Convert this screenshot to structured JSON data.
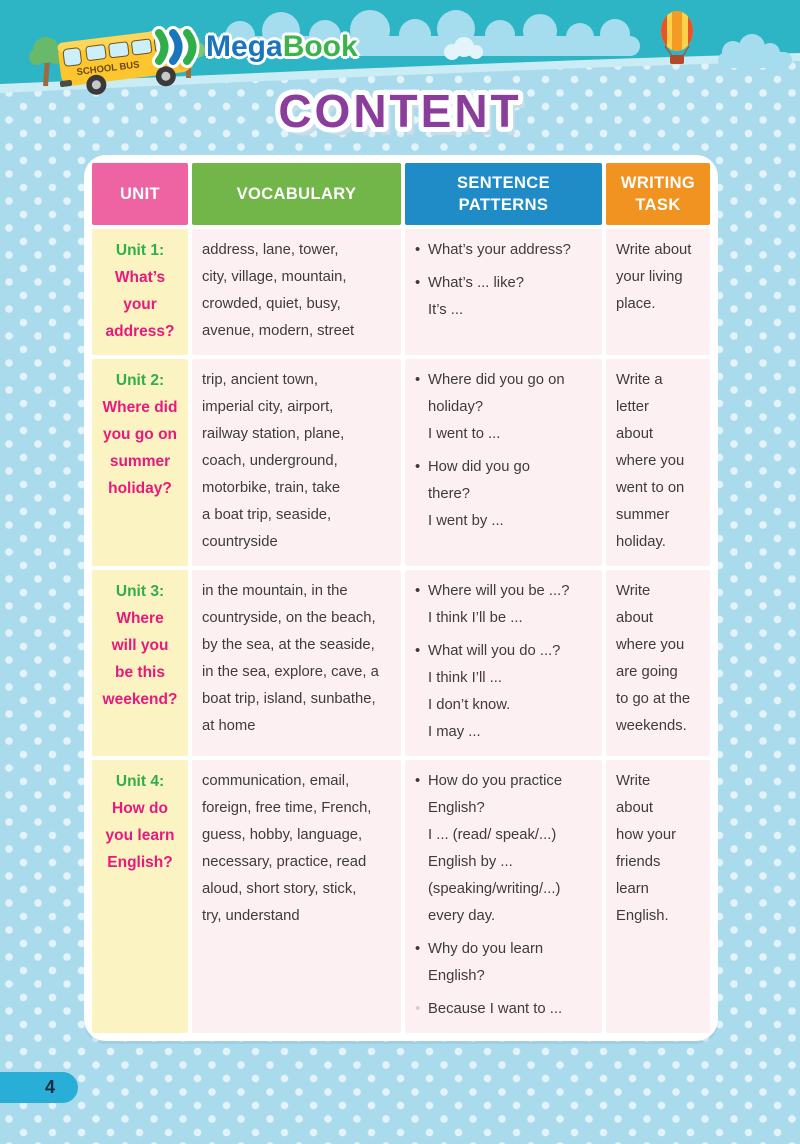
{
  "title": "CONTENT",
  "page_number": "4",
  "logo": {
    "mega": "Mega",
    "book": "Book"
  },
  "bus_label": "SCHOOL BUS",
  "colors": {
    "sky": "#2db5c6",
    "sky_edge": "#c9ecf5",
    "cloud": "#a6ddee",
    "dots_bg": "#a9dbec",
    "title_purple": "#8a3d9b",
    "unit_cell_bg": "#fbf3c2",
    "body_cell_bg": "#fcf0f3",
    "unit_label_green": "#2fae4a",
    "unit_question_pink": "#e9197c",
    "page_pill_blue": "#29aed8"
  },
  "table": {
    "columns": [
      {
        "label": "UNIT",
        "color": "#ee64a3"
      },
      {
        "label": "VOCABULARY",
        "color": "#72b649"
      },
      {
        "label": "SENTENCE PATTERNS",
        "color": "#1f8cc8"
      },
      {
        "label": "WRITING TASK",
        "color": "#f19321"
      }
    ],
    "rows": [
      {
        "unit_label": "Unit 1:",
        "unit_lines": [
          "What’s",
          "your",
          "address?"
        ],
        "vocabulary_lines": [
          "address, lane, tower,",
          "city, village, mountain,",
          "crowded, quiet, busy,",
          "avenue, modern, street"
        ],
        "patterns": [
          {
            "b": 1,
            "t": "What’s your address?"
          },
          {
            "b": 1,
            "t": "What’s ... like?"
          },
          {
            "b": 0,
            "t": "It’s ..."
          }
        ],
        "writing_lines": [
          "Write about",
          "your living",
          "place."
        ]
      },
      {
        "unit_label": "Unit 2:",
        "unit_lines": [
          "Where did",
          "you go on",
          "summer",
          "holiday?"
        ],
        "vocabulary_lines": [
          "trip, ancient town,",
          "imperial city, airport,",
          "railway station, plane,",
          "coach, underground,",
          "motorbike, train, take",
          "a boat trip, seaside,",
          "countryside"
        ],
        "patterns": [
          {
            "b": 1,
            "t": "Where did you go on"
          },
          {
            "b": 0,
            "t": "holiday?"
          },
          {
            "b": 0,
            "t": "I went to ..."
          },
          {
            "b": 1,
            "t": "How did you go"
          },
          {
            "b": 0,
            "t": "there?"
          },
          {
            "b": 0,
            "t": "I went by ..."
          }
        ],
        "writing_lines": [
          "Write a",
          "letter",
          "about",
          "where you",
          "went to on",
          "summer",
          "holiday."
        ]
      },
      {
        "unit_label": "Unit 3:",
        "unit_lines": [
          "Where",
          "will you",
          "be this",
          "weekend?"
        ],
        "vocabulary_lines": [
          "in the mountain, in the",
          "countryside, on the beach,",
          "by the sea, at the seaside,",
          "in the sea, explore, cave, a",
          "boat trip, island, sunbathe,",
          "at home"
        ],
        "patterns": [
          {
            "b": 1,
            "t": "Where will you be ...?"
          },
          {
            "b": 0,
            "t": "I think I’ll be ..."
          },
          {
            "b": 1,
            "t": "What will you do ...?"
          },
          {
            "b": 0,
            "t": "I think I’ll ..."
          },
          {
            "b": 0,
            "t": "I don’t know."
          },
          {
            "b": 0,
            "t": "I may ..."
          }
        ],
        "writing_lines": [
          "Write",
          "about",
          "where you",
          "are going",
          "to go at the",
          "weekends."
        ]
      },
      {
        "unit_label": "Unit 4:",
        "unit_lines": [
          "How do",
          "you learn",
          "English?"
        ],
        "vocabulary_lines": [
          "communication, email,",
          "foreign, free time, French,",
          "guess, hobby, language,",
          "necessary, practice, read",
          "aloud, short story, stick,",
          "try, understand"
        ],
        "patterns": [
          {
            "b": 1,
            "t": "How do you practice"
          },
          {
            "b": 0,
            "t": "English?"
          },
          {
            "b": 0,
            "t": "I ... (read/ speak/...)"
          },
          {
            "b": 0,
            "t": "English by ..."
          },
          {
            "b": 0,
            "t": "(speaking/writing/...)"
          },
          {
            "b": 0,
            "t": "every day."
          },
          {
            "b": 1,
            "t": "Why do you learn"
          },
          {
            "b": 0,
            "t": "English?"
          },
          {
            "b": 2,
            "t": "Because I want to ..."
          }
        ],
        "writing_lines": [
          "Write",
          "about",
          "how your",
          "friends",
          "learn",
          "English."
        ]
      }
    ]
  }
}
